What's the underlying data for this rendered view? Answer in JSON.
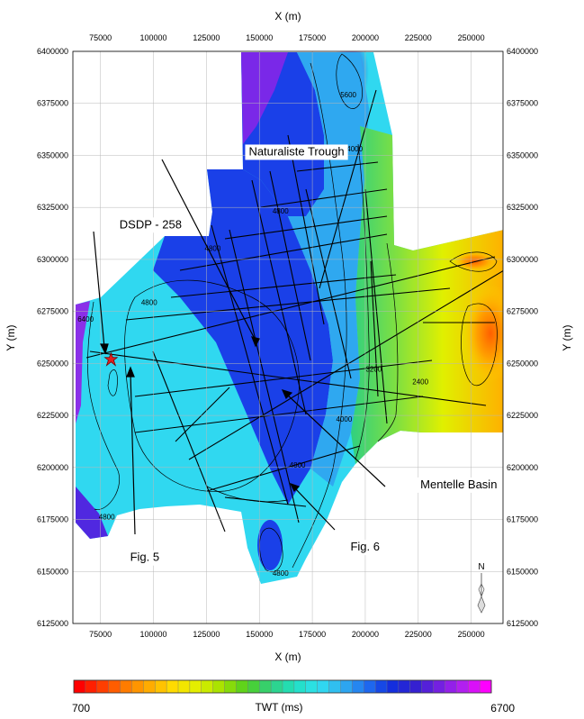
{
  "chart_data": {
    "type": "heatmap",
    "xlabel": "X (m)",
    "ylabel": "Y (m)",
    "xlim": [
      62000,
      265000
    ],
    "ylim": [
      6125000,
      6400000
    ],
    "x_ticks": [
      "75000",
      "100000",
      "125000",
      "150000",
      "175000",
      "200000",
      "225000",
      "250000"
    ],
    "y_ticks": [
      "6125000",
      "6150000",
      "6175000",
      "6200000",
      "6225000",
      "6250000",
      "6275000",
      "6300000",
      "6325000",
      "6350000",
      "6375000",
      "6400000"
    ],
    "grid": true,
    "colorbar": {
      "label": "TWT (ms)",
      "min": 700,
      "max": 6700,
      "min_label": "700",
      "max_label": "6700",
      "colors": [
        "#ff0000",
        "#ff4000",
        "#ff8000",
        "#ffb000",
        "#ffe000",
        "#e0f000",
        "#a0e000",
        "#50d020",
        "#30d080",
        "#20e0c0",
        "#30e0f0",
        "#30b0f0",
        "#2070f0",
        "#1030e0",
        "#3020d0",
        "#7020e0",
        "#b020f0",
        "#ff00ff"
      ]
    },
    "contour_labels": [
      {
        "text": "5600",
        "x": 192000,
        "y": 6378000
      },
      {
        "text": "4000",
        "x": 195000,
        "y": 6352000
      },
      {
        "text": "4800",
        "x": 160000,
        "y": 6322000
      },
      {
        "text": "4800",
        "x": 128000,
        "y": 6304000
      },
      {
        "text": "4800",
        "x": 98000,
        "y": 6278000
      },
      {
        "text": "6400",
        "x": 68000,
        "y": 6270000
      },
      {
        "text": "3200",
        "x": 204000,
        "y": 6246000
      },
      {
        "text": "2400",
        "x": 226000,
        "y": 6240000
      },
      {
        "text": "4000",
        "x": 190000,
        "y": 6222000
      },
      {
        "text": "4800",
        "x": 168000,
        "y": 6200000
      },
      {
        "text": "4800",
        "x": 78000,
        "y": 6175000
      },
      {
        "text": "4800",
        "x": 160000,
        "y": 6148000
      }
    ],
    "annotations": [
      {
        "text": "Naturaliste Trough",
        "x": 145000,
        "y": 6350000
      },
      {
        "text": "DSDP - 258",
        "x": 84000,
        "y": 6315000
      },
      {
        "text": "Mentelle Basin",
        "x": 226000,
        "y": 6190000
      },
      {
        "text": "Fig. 5",
        "x": 89000,
        "y": 6155000
      },
      {
        "text": "Fig. 6",
        "x": 193000,
        "y": 6160000
      }
    ],
    "site_marker": {
      "name": "DSDP - 258",
      "x": 80000,
      "y": 6252000
    },
    "north_label": "N"
  }
}
